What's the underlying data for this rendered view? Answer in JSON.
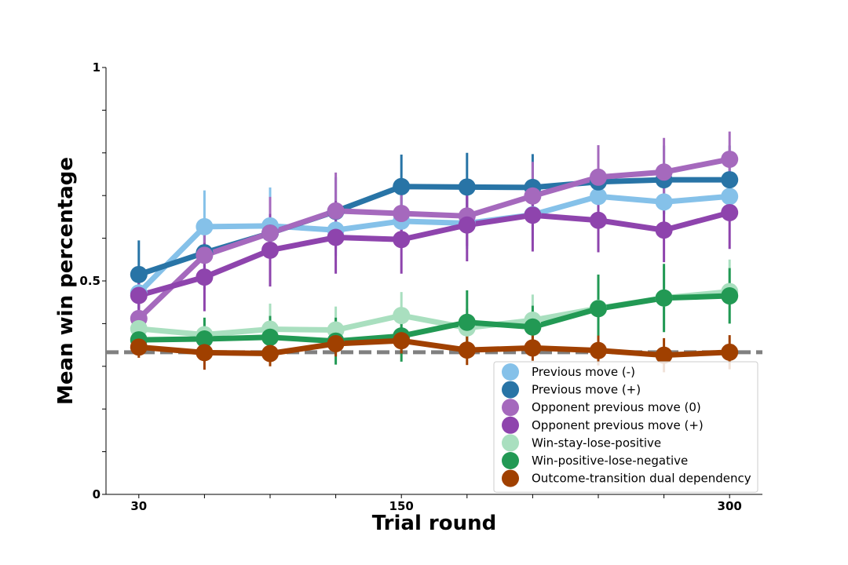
{
  "chart_data": {
    "type": "line",
    "xlabel": "Trial round",
    "ylabel": "Mean win percentage",
    "x": [
      30,
      60,
      90,
      120,
      150,
      180,
      210,
      240,
      270,
      300
    ],
    "xlim": [
      15,
      315
    ],
    "ylim": [
      0,
      1
    ],
    "xticks": [
      30,
      60,
      90,
      120,
      150,
      180,
      210,
      240,
      270,
      300
    ],
    "xtick_labels": [
      "30",
      "",
      "",
      "",
      "150",
      "",
      "",
      "",
      "",
      "300"
    ],
    "yticks": [
      0,
      0.1,
      0.2,
      0.3,
      0.4,
      0.5,
      0.6,
      0.7,
      0.8,
      0.9,
      1
    ],
    "ytick_labels": [
      "0",
      "",
      "",
      "",
      "",
      "0.5",
      "",
      "",
      "",
      "",
      "1"
    ],
    "baseline": 0.333,
    "grid": false,
    "legend_position": "lower-right",
    "series": [
      {
        "name": "Previous move (-)",
        "color": "#85C1E9",
        "values": [
          0.472,
          0.627,
          0.629,
          0.619,
          0.64,
          0.635,
          0.655,
          0.698,
          0.685,
          0.698
        ],
        "err": [
          0.05,
          0.085,
          0.09,
          0.06,
          0.055,
          0.06,
          0.06,
          0.05,
          0.05,
          0.05
        ]
      },
      {
        "name": "Previous move (+)",
        "color": "#2874A6",
        "values": [
          0.515,
          0.566,
          0.612,
          0.663,
          0.721,
          0.72,
          0.719,
          0.732,
          0.737,
          0.737
        ],
        "err": [
          0.08,
          0.075,
          0.08,
          0.08,
          0.075,
          0.08,
          0.078,
          0.08,
          0.08,
          0.08
        ]
      },
      {
        "name": "Opponent previous move (0)",
        "color": "#A569BD",
        "values": [
          0.412,
          0.56,
          0.612,
          0.664,
          0.658,
          0.652,
          0.699,
          0.743,
          0.755,
          0.785
        ],
        "err": [
          0.05,
          0.08,
          0.085,
          0.09,
          0.07,
          0.07,
          0.08,
          0.075,
          0.08,
          0.065
        ]
      },
      {
        "name": "Opponent previous move (+)",
        "color": "#8E44AD",
        "values": [
          0.466,
          0.509,
          0.572,
          0.602,
          0.597,
          0.631,
          0.654,
          0.642,
          0.619,
          0.66
        ],
        "err": [
          0.06,
          0.08,
          0.085,
          0.085,
          0.08,
          0.085,
          0.085,
          0.075,
          0.075,
          0.085
        ]
      },
      {
        "name": "Win-stay-lose-positive",
        "color": "#A9DFBF",
        "values": [
          0.388,
          0.374,
          0.387,
          0.385,
          0.419,
          0.39,
          0.408,
          0.436,
          0.46,
          0.475
        ],
        "err": [
          0.03,
          0.035,
          0.06,
          0.055,
          0.055,
          0.045,
          0.06,
          0.07,
          0.075,
          0.075
        ]
      },
      {
        "name": "Win-positive-lose-negative",
        "color": "#229954",
        "values": [
          0.362,
          0.364,
          0.368,
          0.359,
          0.371,
          0.403,
          0.392,
          0.435,
          0.46,
          0.465
        ],
        "err": [
          0.03,
          0.05,
          0.05,
          0.055,
          0.06,
          0.075,
          0.05,
          0.08,
          0.08,
          0.065
        ]
      },
      {
        "name": "Outcome-transition dual dependency",
        "color": "#A04000",
        "values": [
          0.345,
          0.332,
          0.33,
          0.353,
          0.36,
          0.338,
          0.343,
          0.337,
          0.326,
          0.333
        ],
        "err": [
          0.025,
          0.04,
          0.03,
          0.03,
          0.03,
          0.035,
          0.03,
          0.035,
          0.04,
          0.04
        ]
      }
    ]
  }
}
